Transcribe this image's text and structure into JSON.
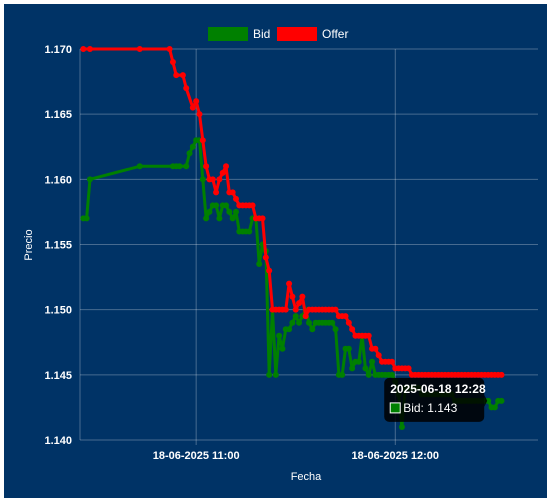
{
  "chart_data": {
    "type": "line",
    "xlabel": "Fecha",
    "ylabel": "Precio",
    "x_ticks": [
      "18-06-2025 11:00",
      "18-06-2025 12:00"
    ],
    "y_ticks": [
      "1.140",
      "1.145",
      "1.150",
      "1.155",
      "1.160",
      "1.165",
      "1.170"
    ],
    "ylim": [
      1.14,
      1.17
    ],
    "xlim": [
      "2025-06-18 10:25",
      "2025-06-18 12:43"
    ],
    "grid": true,
    "legend_position": "top",
    "background": "#003366",
    "series": [
      {
        "name": "Bid",
        "color": "#008000",
        "points": [
          [
            "2025-06-18 10:26",
            1.157
          ],
          [
            "2025-06-18 10:27",
            1.157
          ],
          [
            "2025-06-18 10:28",
            1.16
          ],
          [
            "2025-06-18 10:43",
            1.161
          ],
          [
            "2025-06-18 10:53",
            1.161
          ],
          [
            "2025-06-18 10:54",
            1.161
          ],
          [
            "2025-06-18 10:55",
            1.161
          ],
          [
            "2025-06-18 10:57",
            1.161
          ],
          [
            "2025-06-18 10:58",
            1.162
          ],
          [
            "2025-06-18 10:59",
            1.1625
          ],
          [
            "2025-06-18 11:00",
            1.163
          ],
          [
            "2025-06-18 11:01",
            1.163
          ],
          [
            "2025-06-18 11:02",
            1.16
          ],
          [
            "2025-06-18 11:03",
            1.157
          ],
          [
            "2025-06-18 11:04",
            1.1575
          ],
          [
            "2025-06-18 11:05",
            1.158
          ],
          [
            "2025-06-18 11:06",
            1.158
          ],
          [
            "2025-06-18 11:07",
            1.157
          ],
          [
            "2025-06-18 11:08",
            1.158
          ],
          [
            "2025-06-18 11:09",
            1.158
          ],
          [
            "2025-06-18 11:10",
            1.1575
          ],
          [
            "2025-06-18 11:11",
            1.157
          ],
          [
            "2025-06-18 11:12",
            1.1575
          ],
          [
            "2025-06-18 11:13",
            1.156
          ],
          [
            "2025-06-18 11:14",
            1.156
          ],
          [
            "2025-06-18 11:15",
            1.156
          ],
          [
            "2025-06-18 11:16",
            1.156
          ],
          [
            "2025-06-18 11:17",
            1.157
          ],
          [
            "2025-06-18 11:18",
            1.157
          ],
          [
            "2025-06-18 11:19",
            1.1535
          ],
          [
            "2025-06-18 11:20",
            1.155
          ],
          [
            "2025-06-18 11:21",
            1.1545
          ],
          [
            "2025-06-18 11:22",
            1.145
          ],
          [
            "2025-06-18 11:23",
            1.15
          ],
          [
            "2025-06-18 11:24",
            1.145
          ],
          [
            "2025-06-18 11:25",
            1.148
          ],
          [
            "2025-06-18 11:26",
            1.147
          ],
          [
            "2025-06-18 11:27",
            1.1485
          ],
          [
            "2025-06-18 11:28",
            1.1485
          ],
          [
            "2025-06-18 11:29",
            1.149
          ],
          [
            "2025-06-18 11:30",
            1.1495
          ],
          [
            "2025-06-18 11:31",
            1.149
          ],
          [
            "2025-06-18 11:32",
            1.1495
          ],
          [
            "2025-06-18 11:33",
            1.15
          ],
          [
            "2025-06-18 11:34",
            1.149
          ],
          [
            "2025-06-18 11:35",
            1.1485
          ],
          [
            "2025-06-18 11:36",
            1.149
          ],
          [
            "2025-06-18 11:37",
            1.149
          ],
          [
            "2025-06-18 11:38",
            1.149
          ],
          [
            "2025-06-18 11:39",
            1.149
          ],
          [
            "2025-06-18 11:40",
            1.149
          ],
          [
            "2025-06-18 11:41",
            1.149
          ],
          [
            "2025-06-18 11:42",
            1.1485
          ],
          [
            "2025-06-18 11:43",
            1.145
          ],
          [
            "2025-06-18 11:44",
            1.145
          ],
          [
            "2025-06-18 11:45",
            1.147
          ],
          [
            "2025-06-18 11:46",
            1.147
          ],
          [
            "2025-06-18 11:47",
            1.1455
          ],
          [
            "2025-06-18 11:48",
            1.146
          ],
          [
            "2025-06-18 11:49",
            1.146
          ],
          [
            "2025-06-18 11:50",
            1.148
          ],
          [
            "2025-06-18 11:51",
            1.1455
          ],
          [
            "2025-06-18 11:52",
            1.145
          ],
          [
            "2025-06-18 11:53",
            1.146
          ],
          [
            "2025-06-18 11:54",
            1.145
          ],
          [
            "2025-06-18 11:55",
            1.145
          ],
          [
            "2025-06-18 11:56",
            1.145
          ],
          [
            "2025-06-18 11:57",
            1.145
          ],
          [
            "2025-06-18 11:58",
            1.145
          ],
          [
            "2025-06-18 11:59",
            1.145
          ],
          [
            "2025-06-18 12:00",
            1.1445
          ],
          [
            "2025-06-18 12:01",
            1.1435
          ],
          [
            "2025-06-18 12:02",
            1.141
          ],
          [
            "2025-06-18 12:03",
            1.144
          ],
          [
            "2025-06-18 12:04",
            1.144
          ],
          [
            "2025-06-18 12:05",
            1.144
          ],
          [
            "2025-06-18 12:06",
            1.144
          ],
          [
            "2025-06-18 12:07",
            1.144
          ],
          [
            "2025-06-18 12:08",
            1.1435
          ],
          [
            "2025-06-18 12:09",
            1.1435
          ],
          [
            "2025-06-18 12:10",
            1.1435
          ],
          [
            "2025-06-18 12:11",
            1.1435
          ],
          [
            "2025-06-18 12:12",
            1.1435
          ],
          [
            "2025-06-18 12:13",
            1.1435
          ],
          [
            "2025-06-18 12:14",
            1.1435
          ],
          [
            "2025-06-18 12:15",
            1.1435
          ],
          [
            "2025-06-18 12:16",
            1.1435
          ],
          [
            "2025-06-18 12:17",
            1.1435
          ],
          [
            "2025-06-18 12:18",
            1.143
          ],
          [
            "2025-06-18 12:19",
            1.143
          ],
          [
            "2025-06-18 12:20",
            1.143
          ],
          [
            "2025-06-18 12:21",
            1.143
          ],
          [
            "2025-06-18 12:22",
            1.143
          ],
          [
            "2025-06-18 12:23",
            1.143
          ],
          [
            "2025-06-18 12:24",
            1.143
          ],
          [
            "2025-06-18 12:25",
            1.143
          ],
          [
            "2025-06-18 12:26",
            1.143
          ],
          [
            "2025-06-18 12:27",
            1.143
          ],
          [
            "2025-06-18 12:28",
            1.143
          ],
          [
            "2025-06-18 12:29",
            1.1425
          ],
          [
            "2025-06-18 12:30",
            1.1425
          ],
          [
            "2025-06-18 12:31",
            1.143
          ],
          [
            "2025-06-18 12:32",
            1.143
          ]
        ]
      },
      {
        "name": "Offer",
        "color": "#ff0000",
        "points": [
          [
            "2025-06-18 10:26",
            1.17
          ],
          [
            "2025-06-18 10:28",
            1.17
          ],
          [
            "2025-06-18 10:43",
            1.17
          ],
          [
            "2025-06-18 10:52",
            1.17
          ],
          [
            "2025-06-18 10:53",
            1.169
          ],
          [
            "2025-06-18 10:54",
            1.168
          ],
          [
            "2025-06-18 10:56",
            1.168
          ],
          [
            "2025-06-18 10:57",
            1.167
          ],
          [
            "2025-06-18 10:59",
            1.1655
          ],
          [
            "2025-06-18 11:00",
            1.166
          ],
          [
            "2025-06-18 11:01",
            1.165
          ],
          [
            "2025-06-18 11:02",
            1.163
          ],
          [
            "2025-06-18 11:03",
            1.161
          ],
          [
            "2025-06-18 11:04",
            1.16
          ],
          [
            "2025-06-18 11:05",
            1.16
          ],
          [
            "2025-06-18 11:06",
            1.159
          ],
          [
            "2025-06-18 11:07",
            1.16
          ],
          [
            "2025-06-18 11:08",
            1.1605
          ],
          [
            "2025-06-18 11:09",
            1.161
          ],
          [
            "2025-06-18 11:10",
            1.159
          ],
          [
            "2025-06-18 11:11",
            1.159
          ],
          [
            "2025-06-18 11:12",
            1.1585
          ],
          [
            "2025-06-18 11:13",
            1.158
          ],
          [
            "2025-06-18 11:14",
            1.158
          ],
          [
            "2025-06-18 11:15",
            1.158
          ],
          [
            "2025-06-18 11:16",
            1.158
          ],
          [
            "2025-06-18 11:17",
            1.158
          ],
          [
            "2025-06-18 11:18",
            1.157
          ],
          [
            "2025-06-18 11:19",
            1.157
          ],
          [
            "2025-06-18 11:20",
            1.157
          ],
          [
            "2025-06-18 11:21",
            1.154
          ],
          [
            "2025-06-18 11:22",
            1.153
          ],
          [
            "2025-06-18 11:23",
            1.15
          ],
          [
            "2025-06-18 11:24",
            1.15
          ],
          [
            "2025-06-18 11:25",
            1.15
          ],
          [
            "2025-06-18 11:26",
            1.15
          ],
          [
            "2025-06-18 11:27",
            1.15
          ],
          [
            "2025-06-18 11:28",
            1.152
          ],
          [
            "2025-06-18 11:29",
            1.151
          ],
          [
            "2025-06-18 11:30",
            1.15
          ],
          [
            "2025-06-18 11:31",
            1.1505
          ],
          [
            "2025-06-18 11:32",
            1.151
          ],
          [
            "2025-06-18 11:33",
            1.1495
          ],
          [
            "2025-06-18 11:34",
            1.15
          ],
          [
            "2025-06-18 11:35",
            1.15
          ],
          [
            "2025-06-18 11:36",
            1.15
          ],
          [
            "2025-06-18 11:37",
            1.15
          ],
          [
            "2025-06-18 11:38",
            1.15
          ],
          [
            "2025-06-18 11:39",
            1.15
          ],
          [
            "2025-06-18 11:40",
            1.15
          ],
          [
            "2025-06-18 11:41",
            1.15
          ],
          [
            "2025-06-18 11:42",
            1.15
          ],
          [
            "2025-06-18 11:43",
            1.1495
          ],
          [
            "2025-06-18 11:44",
            1.1495
          ],
          [
            "2025-06-18 11:45",
            1.1495
          ],
          [
            "2025-06-18 11:46",
            1.149
          ],
          [
            "2025-06-18 11:47",
            1.1485
          ],
          [
            "2025-06-18 11:48",
            1.148
          ],
          [
            "2025-06-18 11:49",
            1.148
          ],
          [
            "2025-06-18 11:50",
            1.148
          ],
          [
            "2025-06-18 11:51",
            1.148
          ],
          [
            "2025-06-18 11:52",
            1.148
          ],
          [
            "2025-06-18 11:53",
            1.147
          ],
          [
            "2025-06-18 11:54",
            1.147
          ],
          [
            "2025-06-18 11:55",
            1.1465
          ],
          [
            "2025-06-18 11:56",
            1.146
          ],
          [
            "2025-06-18 11:57",
            1.146
          ],
          [
            "2025-06-18 11:58",
            1.146
          ],
          [
            "2025-06-18 11:59",
            1.146
          ],
          [
            "2025-06-18 12:00",
            1.1455
          ],
          [
            "2025-06-18 12:01",
            1.1455
          ],
          [
            "2025-06-18 12:02",
            1.1455
          ],
          [
            "2025-06-18 12:03",
            1.1455
          ],
          [
            "2025-06-18 12:04",
            1.1455
          ],
          [
            "2025-06-18 12:05",
            1.145
          ],
          [
            "2025-06-18 12:06",
            1.145
          ],
          [
            "2025-06-18 12:07",
            1.145
          ],
          [
            "2025-06-18 12:08",
            1.145
          ],
          [
            "2025-06-18 12:09",
            1.145
          ],
          [
            "2025-06-18 12:10",
            1.145
          ],
          [
            "2025-06-18 12:11",
            1.145
          ],
          [
            "2025-06-18 12:12",
            1.145
          ],
          [
            "2025-06-18 12:13",
            1.145
          ],
          [
            "2025-06-18 12:14",
            1.145
          ],
          [
            "2025-06-18 12:15",
            1.145
          ],
          [
            "2025-06-18 12:16",
            1.145
          ],
          [
            "2025-06-18 12:17",
            1.145
          ],
          [
            "2025-06-18 12:18",
            1.145
          ],
          [
            "2025-06-18 12:19",
            1.145
          ],
          [
            "2025-06-18 12:20",
            1.145
          ],
          [
            "2025-06-18 12:21",
            1.145
          ],
          [
            "2025-06-18 12:22",
            1.145
          ],
          [
            "2025-06-18 12:23",
            1.145
          ],
          [
            "2025-06-18 12:24",
            1.145
          ],
          [
            "2025-06-18 12:25",
            1.145
          ],
          [
            "2025-06-18 12:26",
            1.145
          ],
          [
            "2025-06-18 12:27",
            1.145
          ],
          [
            "2025-06-18 12:28",
            1.145
          ],
          [
            "2025-06-18 12:29",
            1.145
          ],
          [
            "2025-06-18 12:30",
            1.145
          ],
          [
            "2025-06-18 12:31",
            1.145
          ],
          [
            "2025-06-18 12:32",
            1.145
          ]
        ]
      }
    ],
    "tooltip": {
      "title": "2025-06-18 12:28",
      "label": "Bid: 1.143",
      "series": "Bid",
      "x": "2025-06-18 12:28",
      "y": 1.143
    }
  }
}
